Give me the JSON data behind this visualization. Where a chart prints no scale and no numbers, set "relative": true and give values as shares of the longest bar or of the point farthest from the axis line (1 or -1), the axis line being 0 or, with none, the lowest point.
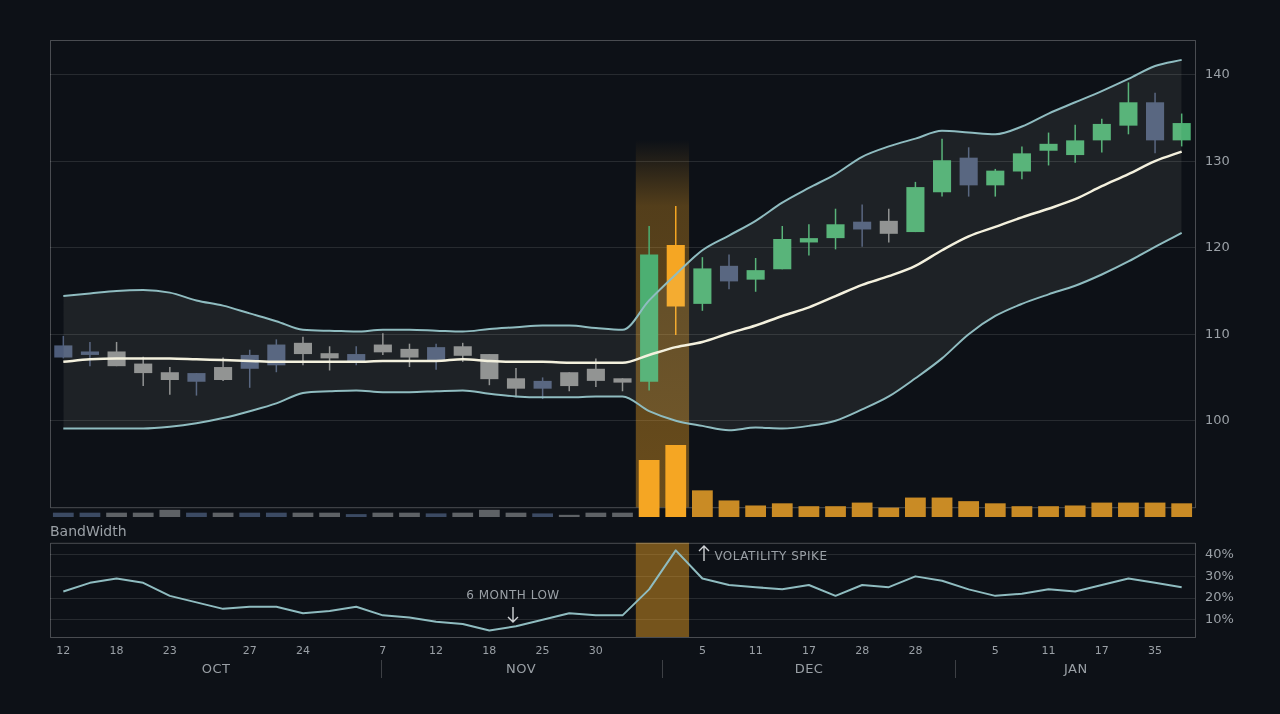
{
  "chart_data": [
    {
      "type": "candlestick",
      "categories": [
        "12",
        null,
        "18",
        null,
        "23",
        null,
        null,
        "27",
        null,
        "24",
        null,
        null,
        "7",
        null,
        "12",
        null,
        "18",
        null,
        "25",
        null,
        "30",
        null,
        null,
        null,
        "5",
        null,
        "11",
        null,
        "17",
        null,
        "28",
        null,
        "28",
        null,
        null,
        "5",
        null,
        "11",
        null,
        "17",
        null,
        "35",
        null
      ],
      "ohlc": [
        [
          108.7,
          109.8,
          107.2,
          107.3
        ],
        [
          108.0,
          109.1,
          106.3,
          107.6
        ],
        [
          106.3,
          109.1,
          106.3,
          108.0
        ],
        [
          105.5,
          107.4,
          104.0,
          106.6
        ],
        [
          104.7,
          106.2,
          103.0,
          105.6
        ],
        [
          105.5,
          105.5,
          102.9,
          104.5
        ],
        [
          104.7,
          107.3,
          104.6,
          106.2
        ],
        [
          107.6,
          108.2,
          103.8,
          106.0
        ],
        [
          108.8,
          109.4,
          105.6,
          106.4
        ],
        [
          107.7,
          109.7,
          106.4,
          109.0
        ],
        [
          107.2,
          108.6,
          105.8,
          107.8
        ],
        [
          107.7,
          108.6,
          106.4,
          106.8
        ],
        [
          107.9,
          110.1,
          107.6,
          108.8
        ],
        [
          107.3,
          108.9,
          106.2,
          108.3
        ],
        [
          108.5,
          108.9,
          105.9,
          106.9
        ],
        [
          107.5,
          109.0,
          106.8,
          108.6
        ],
        [
          104.8,
          107.7,
          104.1,
          107.7
        ],
        [
          103.7,
          106.1,
          102.7,
          104.9
        ],
        [
          104.6,
          105.0,
          102.5,
          103.7
        ],
        [
          104.0,
          105.6,
          103.4,
          105.6
        ],
        [
          104.6,
          107.2,
          103.9,
          106.0
        ],
        [
          104.4,
          104.9,
          103.4,
          104.9
        ],
        [
          104.5,
          122.5,
          103.5,
          119.2
        ],
        [
          120.3,
          124.8,
          109.9,
          113.2
        ],
        [
          113.5,
          118.9,
          112.7,
          117.6
        ],
        [
          117.9,
          119.2,
          115.2,
          116.1
        ],
        [
          116.3,
          118.8,
          114.9,
          117.4
        ],
        [
          117.5,
          122.5,
          117.5,
          121.0
        ],
        [
          120.6,
          122.7,
          119.1,
          121.1
        ],
        [
          121.1,
          124.5,
          119.8,
          122.7
        ],
        [
          123.0,
          125.0,
          120.1,
          122.1
        ],
        [
          121.6,
          124.5,
          120.6,
          123.1
        ],
        [
          121.8,
          127.6,
          121.8,
          127.0
        ],
        [
          126.4,
          132.6,
          125.9,
          130.1
        ],
        [
          130.4,
          131.6,
          125.9,
          127.2
        ],
        [
          127.2,
          129.1,
          125.9,
          128.9
        ],
        [
          128.8,
          131.7,
          127.9,
          130.9
        ],
        [
          131.2,
          133.3,
          129.5,
          132.0
        ],
        [
          130.7,
          134.2,
          129.8,
          132.4
        ],
        [
          132.4,
          134.9,
          131.0,
          134.3
        ],
        [
          134.1,
          139.1,
          133.1,
          136.8
        ],
        [
          136.8,
          137.9,
          130.9,
          132.4
        ],
        [
          132.4,
          135.5,
          131.7,
          134.4
        ]
      ],
      "colors": [
        "#4d5c7a",
        "#4d5c7a",
        "#8a8c8e",
        "#8a8c8e",
        "#8a8c8e",
        "#4d5c7a",
        "#8a8c8e",
        "#4d5c7a",
        "#4d5c7a",
        "#8a8c8e",
        "#8a8c8e",
        "#4d5c7a",
        "#8a8c8e",
        "#8a8c8e",
        "#4d5c7a",
        "#8a8c8e",
        "#8a8c8e",
        "#8a8c8e",
        "#4d5c7a",
        "#8a8c8e",
        "#8a8c8e",
        "#8a8c8e",
        "#4caf72",
        "#f5a623",
        "#4caf72",
        "#4d5c7a",
        "#4caf72",
        "#4caf72",
        "#4caf72",
        "#4caf72",
        "#4d5c7a",
        "#8a8c8e",
        "#4caf72",
        "#4caf72",
        "#4d5c7a",
        "#4caf72",
        "#4caf72",
        "#4caf72",
        "#4caf72",
        "#4caf72",
        "#4caf72",
        "#4d5c7a",
        "#4caf72"
      ],
      "series": [
        {
          "type": "line",
          "color": "#8fbcc0",
          "values": [
            114.4,
            114.7,
            115.0,
            115.1,
            114.8,
            113.9,
            113.3,
            112.4,
            111.5,
            110.5,
            110.4,
            110.3,
            110.5,
            110.5,
            110.4,
            110.3,
            110.6,
            110.8,
            111.0,
            111.0,
            110.7,
            110.5,
            113.9,
            116.9,
            119.7,
            121.4,
            123.1,
            125.2,
            126.9,
            128.5,
            130.5,
            131.7,
            132.6,
            133.5,
            133.3,
            133.1,
            134.0,
            135.5,
            136.8,
            138.1,
            139.5,
            141.0,
            141.7
          ]
        },
        {
          "type": "line",
          "color": "#f4f1de",
          "values": [
            106.8,
            107.1,
            107.2,
            107.2,
            107.2,
            107.1,
            107.0,
            106.9,
            106.8,
            106.8,
            106.8,
            106.8,
            106.9,
            106.9,
            106.9,
            107.1,
            106.9,
            106.8,
            106.8,
            106.7,
            106.7,
            106.7,
            107.6,
            108.5,
            109.1,
            110.1,
            111.0,
            112.1,
            113.1,
            114.4,
            115.7,
            116.7,
            117.9,
            119.7,
            121.3,
            122.4,
            123.5,
            124.5,
            125.6,
            127.1,
            128.5,
            130.0,
            131.1
          ],
          "upper": [
            114.4,
            114.7,
            115.0,
            115.1,
            114.8,
            113.9,
            113.3,
            112.4,
            111.5,
            110.5,
            110.4,
            110.3,
            110.5,
            110.5,
            110.4,
            110.3,
            110.6,
            110.8,
            111.0,
            111.0,
            110.7,
            110.5,
            113.9,
            116.9,
            119.7,
            121.4,
            123.1,
            125.2,
            126.9,
            128.5,
            130.5,
            131.7,
            132.6,
            133.5,
            133.3,
            133.1,
            134.0,
            135.5,
            136.8,
            138.1,
            139.5,
            141.0,
            141.7
          ],
          "lower": [
            99.1,
            99.1,
            99.1,
            99.1,
            99.3,
            99.7,
            100.3,
            101.1,
            102.0,
            103.2,
            103.4,
            103.5,
            103.3,
            103.3,
            103.4,
            103.5,
            103.1,
            102.8,
            102.7,
            102.7,
            102.8,
            102.8,
            101.1,
            100.0,
            99.4,
            98.9,
            99.2,
            99.1,
            99.4,
            100.0,
            101.3,
            102.8,
            104.9,
            107.2,
            110.0,
            112.1,
            113.5,
            114.6,
            115.6,
            116.9,
            118.4,
            120.1,
            121.7
          ]
        },
        {
          "type": "line",
          "color": "#8fbcc0",
          "values": [
            99.1,
            99.1,
            99.1,
            99.1,
            99.3,
            99.7,
            100.3,
            101.1,
            102.0,
            103.2,
            103.4,
            103.5,
            103.3,
            103.3,
            103.4,
            103.5,
            103.1,
            102.8,
            102.7,
            102.7,
            102.8,
            102.8,
            101.1,
            100.0,
            99.4,
            98.9,
            99.2,
            99.1,
            99.4,
            100.0,
            101.3,
            102.8,
            104.9,
            107.2,
            110.0,
            112.1,
            113.5,
            114.6,
            115.6,
            116.9,
            118.4,
            120.1,
            121.7
          ]
        }
      ],
      "ylim": [
        90,
        144
      ],
      "yticks": [
        100,
        110,
        120,
        130,
        140
      ],
      "grid": "y",
      "tick_labels": "y"
    },
    {
      "type": "bar",
      "categories": [
        "12",
        null,
        "18",
        null,
        "23",
        null,
        null,
        "27",
        null,
        "24",
        null,
        null,
        "7",
        null,
        "12",
        null,
        "18",
        null,
        "25",
        null,
        "30",
        null,
        null,
        null,
        "5",
        null,
        "11",
        null,
        "17",
        null,
        "28",
        null,
        "28",
        null,
        null,
        "5",
        null,
        "11",
        null,
        "17",
        null,
        "35",
        null
      ],
      "values": [
        0.06,
        0.06,
        0.06,
        0.06,
        0.1,
        0.06,
        0.06,
        0.06,
        0.06,
        0.06,
        0.06,
        0.04,
        0.06,
        0.06,
        0.05,
        0.06,
        0.1,
        0.06,
        0.05,
        0.03,
        0.06,
        0.06,
        0.79,
        1,
        0.37,
        0.23,
        0.16,
        0.19,
        0.15,
        0.15,
        0.2,
        0.13,
        0.27,
        0.27,
        0.22,
        0.19,
        0.15,
        0.15,
        0.16,
        0.2,
        0.2,
        0.2,
        0.19
      ],
      "colors": [
        "#3b4a63",
        "#3b4a63",
        "#5e6266",
        "#5e6266",
        "#5e6266",
        "#3b4a63",
        "#5e6266",
        "#3b4a63",
        "#3b4a63",
        "#5e6266",
        "#5e6266",
        "#3b4a63",
        "#5e6266",
        "#5e6266",
        "#3b4a63",
        "#5e6266",
        "#5e6266",
        "#5e6266",
        "#3b4a63",
        "#5e6266",
        "#5e6266",
        "#5e6266",
        "#f5a623",
        "#f5a623",
        "#c98b25",
        "#c98b25",
        "#c98b25",
        "#c98b25",
        "#c98b25",
        "#c98b25",
        "#c98b25",
        "#c98b25",
        "#c98b25",
        "#c98b25",
        "#c98b25",
        "#c98b25",
        "#c98b25",
        "#c98b25",
        "#c98b25",
        "#c98b25",
        "#c98b25",
        "#c98b25",
        "#c98b25"
      ],
      "relative": true,
      "tick_labels": false
    },
    {
      "type": "line",
      "title": "BandWidth",
      "categories": [
        "12",
        null,
        "18",
        null,
        "23",
        null,
        null,
        "27",
        null,
        "24",
        null,
        null,
        "7",
        null,
        "12",
        null,
        "18",
        null,
        "25",
        null,
        "30",
        null,
        null,
        null,
        "5",
        null,
        "11",
        null,
        "17",
        null,
        "28",
        null,
        "28",
        null,
        null,
        "5",
        null,
        "11",
        null,
        "17",
        null,
        "35",
        null
      ],
      "values": [
        23,
        27,
        29,
        27,
        21,
        18,
        15,
        16,
        16,
        13,
        14,
        16,
        12,
        11,
        9,
        8,
        5,
        7,
        10,
        13,
        12,
        12,
        24,
        42,
        29,
        26,
        25,
        24,
        26,
        21,
        26,
        25,
        30,
        28,
        24,
        21,
        22,
        24,
        23,
        26,
        29,
        27,
        25
      ],
      "color": "#8fbcc0",
      "ylim": [
        2,
        45.5
      ],
      "yticks": [
        {
          "value": 10,
          "label": "10%"
        },
        {
          "value": 20,
          "label": "20%"
        },
        {
          "value": 30,
          "label": "30%"
        },
        {
          "value": 40,
          "label": "40%"
        }
      ],
      "grid": "y",
      "annotations": [
        "6 MONTH LOW",
        "VOLATILITY SPIKE",
        "OCT",
        "NOV",
        "DEC",
        "JAN"
      ]
    }
  ]
}
